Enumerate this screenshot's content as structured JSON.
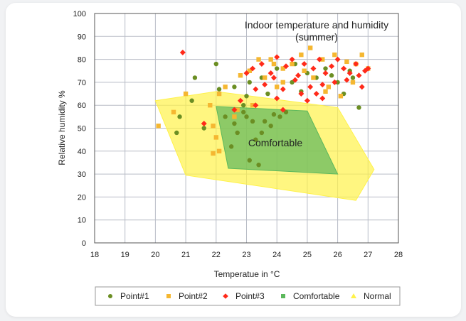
{
  "chart_data": {
    "type": "scatter",
    "title": "Indoor temperature and humidity",
    "subtitle": "(summer)",
    "xlabel": "Temperatue in °C",
    "ylabel": "Relative humidity %",
    "xlim": [
      18,
      28
    ],
    "ylim": [
      0,
      100
    ],
    "xticks": [
      18,
      19,
      20,
      21,
      22,
      23,
      24,
      25,
      26,
      27,
      28
    ],
    "yticks": [
      0,
      10,
      20,
      30,
      40,
      50,
      60,
      70,
      80,
      90,
      100
    ],
    "grid": true,
    "legend_position": "bottom",
    "annotation": "Comfortable",
    "regions": [
      {
        "name": "Normal",
        "color": "#fff24a",
        "opacity": 0.7,
        "points": [
          [
            20,
            62
          ],
          [
            22,
            66
          ],
          [
            26,
            59
          ],
          [
            27.2,
            32
          ],
          [
            26.6,
            18.5
          ],
          [
            21,
            29.5
          ]
        ]
      },
      {
        "name": "Comfortable",
        "color": "#5cb85c",
        "opacity": 0.7,
        "points": [
          [
            22,
            59.5
          ],
          [
            25,
            57.5
          ],
          [
            26,
            30
          ],
          [
            22.4,
            32.5
          ]
        ]
      }
    ],
    "series": [
      {
        "name": "Point#1",
        "marker": "circle",
        "color": "#6b8e23",
        "points": [
          [
            21.3,
            72
          ],
          [
            22,
            78
          ],
          [
            21.2,
            62
          ],
          [
            20.8,
            55
          ],
          [
            20.7,
            48
          ],
          [
            21.6,
            50
          ],
          [
            22.3,
            55
          ],
          [
            22.6,
            52
          ],
          [
            22.5,
            42
          ],
          [
            22.7,
            48
          ],
          [
            22.9,
            57
          ],
          [
            23,
            55
          ],
          [
            23.2,
            53
          ],
          [
            23.3,
            45
          ],
          [
            23.5,
            48
          ],
          [
            23.6,
            53
          ],
          [
            23.8,
            51
          ],
          [
            23.1,
            36
          ],
          [
            23.4,
            34
          ],
          [
            23.9,
            56
          ],
          [
            24.1,
            55
          ],
          [
            24.3,
            57
          ],
          [
            22.9,
            60
          ],
          [
            23,
            64
          ],
          [
            23.1,
            70
          ],
          [
            23.5,
            72
          ],
          [
            24,
            76
          ],
          [
            24.5,
            70
          ],
          [
            24.8,
            66
          ],
          [
            25,
            74
          ],
          [
            25.3,
            72
          ],
          [
            25.6,
            76
          ],
          [
            26,
            70
          ],
          [
            26.2,
            65
          ],
          [
            26.5,
            72
          ],
          [
            26.7,
            59
          ],
          [
            26.4,
            75
          ],
          [
            25.8,
            73
          ],
          [
            24.6,
            78
          ],
          [
            23.7,
            65
          ],
          [
            22.6,
            68
          ],
          [
            22.1,
            67
          ]
        ]
      },
      {
        "name": "Point#2",
        "marker": "square",
        "color": "#f5b731",
        "points": [
          [
            20.1,
            51
          ],
          [
            20.6,
            57
          ],
          [
            21,
            65
          ],
          [
            21.8,
            60
          ],
          [
            22.1,
            65
          ],
          [
            22.3,
            68
          ],
          [
            21.9,
            51
          ],
          [
            22,
            46
          ],
          [
            22.1,
            40
          ],
          [
            21.9,
            39
          ],
          [
            22.6,
            55
          ],
          [
            22.8,
            73
          ],
          [
            23.1,
            75
          ],
          [
            23.4,
            80
          ],
          [
            23.8,
            80
          ],
          [
            24.2,
            76
          ],
          [
            24.5,
            78
          ],
          [
            24.8,
            82
          ],
          [
            25.1,
            85
          ],
          [
            25.5,
            80
          ],
          [
            25.9,
            82
          ],
          [
            26.3,
            79
          ],
          [
            26.8,
            82
          ],
          [
            27,
            76
          ],
          [
            26.5,
            70
          ],
          [
            26.1,
            64
          ],
          [
            25.7,
            68
          ],
          [
            25.2,
            72
          ],
          [
            24.9,
            75
          ],
          [
            24.2,
            70
          ],
          [
            23.6,
            72
          ],
          [
            23.2,
            60
          ],
          [
            22.7,
            58
          ],
          [
            24,
            68
          ],
          [
            26.6,
            78
          ],
          [
            25.6,
            66
          ],
          [
            23.9,
            78
          ]
        ]
      },
      {
        "name": "Point#3",
        "marker": "diamond",
        "color": "#ff2a1a",
        "points": [
          [
            20.9,
            83
          ],
          [
            23.2,
            76
          ],
          [
            23.5,
            78
          ],
          [
            23.8,
            74
          ],
          [
            24,
            81
          ],
          [
            24.3,
            77
          ],
          [
            24.5,
            80
          ],
          [
            24.7,
            73
          ],
          [
            24.9,
            78
          ],
          [
            25.2,
            76
          ],
          [
            25.4,
            80
          ],
          [
            25.6,
            74
          ],
          [
            25.8,
            77
          ],
          [
            26,
            80
          ],
          [
            26.2,
            76
          ],
          [
            26.4,
            74
          ],
          [
            26.6,
            78
          ],
          [
            26.9,
            75
          ],
          [
            27,
            76
          ],
          [
            26.8,
            68
          ],
          [
            26.3,
            71
          ],
          [
            25.9,
            70
          ],
          [
            25.5,
            69
          ],
          [
            25.1,
            68
          ],
          [
            24.8,
            65
          ],
          [
            24.6,
            71
          ],
          [
            24.2,
            67
          ],
          [
            23.9,
            72
          ],
          [
            23.6,
            69
          ],
          [
            23.3,
            67
          ],
          [
            23,
            74
          ],
          [
            24,
            63
          ],
          [
            25,
            62
          ],
          [
            25.3,
            65
          ],
          [
            26.7,
            73
          ],
          [
            22.8,
            62
          ],
          [
            22.6,
            58
          ],
          [
            21.6,
            52
          ],
          [
            23.3,
            60
          ],
          [
            24.2,
            58
          ],
          [
            25.5,
            63
          ]
        ]
      }
    ],
    "legend": [
      {
        "label": "Point#1",
        "marker": "circle",
        "color": "#6b8e23"
      },
      {
        "label": "Point#2",
        "marker": "square",
        "color": "#f5b731"
      },
      {
        "label": "Point#3",
        "marker": "diamond",
        "color": "#ff2a1a"
      },
      {
        "label": "Comfortable",
        "marker": "square",
        "color": "#5cb85c"
      },
      {
        "label": "Normal",
        "marker": "triangle",
        "color": "#fff24a"
      }
    ]
  }
}
